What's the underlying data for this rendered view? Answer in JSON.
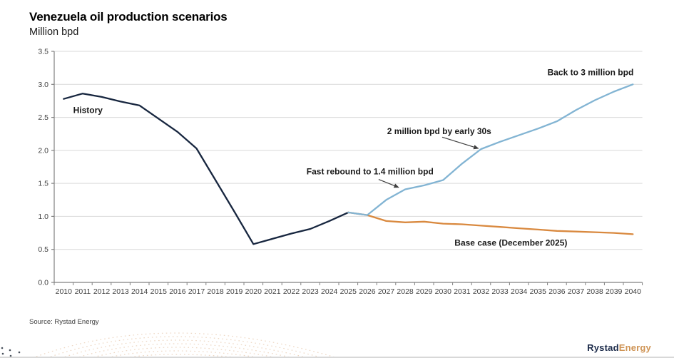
{
  "chart_data": {
    "type": "line",
    "title": "Venezuela oil production scenarios",
    "ylabel": "Million bpd",
    "x": [
      2010,
      2011,
      2012,
      2013,
      2014,
      2015,
      2016,
      2017,
      2018,
      2019,
      2020,
      2021,
      2022,
      2023,
      2024,
      2025,
      2026,
      2027,
      2028,
      2029,
      2030,
      2031,
      2032,
      2033,
      2034,
      2035,
      2036,
      2037,
      2038,
      2039,
      2040
    ],
    "ylim": [
      0,
      3.5
    ],
    "ystep": 0.5,
    "grid": true,
    "grid_color": "#d9d9d9",
    "axis_color": "#808080",
    "tick_label_color": "#404040",
    "series": [
      {
        "id": "history",
        "name": "History",
        "color": "#17263f",
        "start_year": 2010,
        "values": [
          2.78,
          2.86,
          2.81,
          2.74,
          2.68,
          2.48,
          2.28,
          2.03,
          1.55,
          1.07,
          0.58,
          0.66,
          0.74,
          0.81,
          0.93,
          1.06
        ]
      },
      {
        "id": "base-case",
        "name": "Base case (December 2025)",
        "color": "#d9893f",
        "start_year": 2025,
        "values": [
          1.06,
          1.02,
          0.93,
          0.91,
          0.92,
          0.89,
          0.88,
          0.86,
          0.84,
          0.82,
          0.8,
          0.78,
          0.77,
          0.76,
          0.75,
          0.73
        ]
      },
      {
        "id": "rebound",
        "name": "Back to 3 million bpd",
        "color": "#82b4d3",
        "start_year": 2025,
        "values": [
          1.06,
          1.02,
          1.25,
          1.41,
          1.47,
          1.55,
          1.8,
          2.02,
          2.13,
          2.23,
          2.33,
          2.44,
          2.61,
          2.76,
          2.89,
          3.0
        ]
      }
    ],
    "annotations": [
      {
        "id": "history-label",
        "text": "History",
        "x": 2010.5,
        "y": 2.61
      },
      {
        "id": "fast-rebound-label",
        "text": "Fast rebound to 1.4 million bpd",
        "x": 2022.8,
        "y": 1.68,
        "arrow": {
          "x1": 2026.6,
          "y1": 1.56,
          "x2": 2027.65,
          "y2": 1.44
        }
      },
      {
        "id": "two-million-label",
        "text": "2 million bpd by early 30s",
        "x": 2027.05,
        "y": 2.29,
        "arrow": {
          "x1": 2029.95,
          "y1": 2.2,
          "x2": 2031.85,
          "y2": 2.03
        }
      },
      {
        "id": "back-to-three-label",
        "text": "Back to 3 million bpd",
        "x": 2035.5,
        "y": 3.18
      },
      {
        "id": "base-case-label",
        "text": "Base case (December 2025)",
        "x": 2030.6,
        "y": 0.6
      }
    ]
  },
  "source": "Source: Rystad Energy",
  "logo": {
    "part1": "Rystad",
    "part2": "Energy",
    "color1": "#1c2b4a",
    "color2": "#cf9455"
  }
}
